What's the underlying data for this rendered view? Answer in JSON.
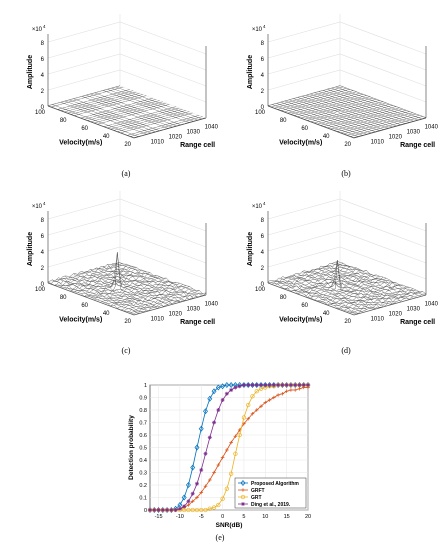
{
  "chart_data": [
    {
      "type": "surface",
      "caption": "(a)",
      "zlabel": "Amplitude",
      "xlabel": "Range cell",
      "ylabel": "Velocity(m/s)",
      "z_exponent": "×10",
      "z_exponent_power": "4",
      "z_ticks": [
        "0",
        "2",
        "4",
        "6",
        "8"
      ],
      "x_ticks": [
        "1010",
        "1020",
        "1030",
        "1040"
      ],
      "y_ticks": [
        "20",
        "40",
        "60",
        "80",
        "100"
      ],
      "zlim": [
        0,
        90000
      ],
      "surface": "flat noise floor with bright stripes",
      "peak": 0
    },
    {
      "type": "surface",
      "caption": "(b)",
      "zlabel": "Amplitude",
      "xlabel": "Range cell",
      "ylabel": "Velocity(m/s)",
      "z_exponent": "×10",
      "z_exponent_power": "4",
      "z_ticks": [
        "0",
        "2",
        "4",
        "6",
        "8"
      ],
      "x_ticks": [
        "1010",
        "1020",
        "1030",
        "1040"
      ],
      "y_ticks": [
        "20",
        "40",
        "60",
        "80",
        "100"
      ],
      "zlim": [
        0,
        90000
      ],
      "surface": "flat noise floor with small central bump",
      "peak": 2000
    },
    {
      "type": "surface",
      "caption": "(c)",
      "zlabel": "Amplitude",
      "xlabel": "Range cell",
      "ylabel": "Velocity(m/s)",
      "z_exponent": "×10",
      "z_exponent_power": "4",
      "z_ticks": [
        "0",
        "2",
        "4",
        "6",
        "8"
      ],
      "x_ticks": [
        "1010",
        "1020",
        "1030",
        "1040"
      ],
      "y_ticks": [
        "20",
        "40",
        "60",
        "80",
        "100"
      ],
      "zlim": [
        0,
        90000
      ],
      "surface": "noise floor with single sharp peak",
      "peak": 72000
    },
    {
      "type": "surface",
      "caption": "(d)",
      "zlabel": "Amplitude",
      "xlabel": "Range cell",
      "ylabel": "Velocity(m/s)",
      "z_exponent": "×10",
      "z_exponent_power": "4",
      "z_ticks": [
        "0",
        "2",
        "4",
        "6",
        "8"
      ],
      "x_ticks": [
        "1010",
        "1020",
        "1030",
        "1040"
      ],
      "y_ticks": [
        "20",
        "40",
        "60",
        "80",
        "100"
      ],
      "zlim": [
        0,
        90000
      ],
      "surface": "noise floor with single sharp peak",
      "peak": 60000
    },
    {
      "type": "line",
      "caption": "(e)",
      "xlabel": "SNR(dB)",
      "ylabel": "Detection probability",
      "xlim": [
        -17,
        20
      ],
      "ylim": [
        0,
        1
      ],
      "x_ticks": [
        "-15",
        "-10",
        "-5",
        "0",
        "5",
        "10",
        "15",
        "20"
      ],
      "y_ticks": [
        "0",
        "0.1",
        "0.2",
        "0.3",
        "0.4",
        "0.5",
        "0.6",
        "0.7",
        "0.8",
        "0.9",
        "1"
      ],
      "legend_position": "bottom-right",
      "x": [
        -17,
        -16,
        -15,
        -14,
        -13,
        -12,
        -11,
        -10,
        -9,
        -8,
        -7,
        -6,
        -5,
        -4,
        -3,
        -2,
        -1,
        0,
        1,
        2,
        3,
        4,
        5,
        6,
        7,
        8,
        9,
        10,
        11,
        12,
        13,
        14,
        15,
        16,
        17,
        18,
        19,
        20
      ],
      "series": [
        {
          "name": "Proposed Algorithm",
          "color": "#0072bd",
          "marker": "diamond",
          "values": [
            0,
            0,
            0,
            0,
            0,
            0,
            0.01,
            0.04,
            0.1,
            0.2,
            0.34,
            0.5,
            0.65,
            0.79,
            0.89,
            0.95,
            0.98,
            0.99,
            1,
            1,
            1,
            1,
            1,
            1,
            1,
            1,
            1,
            1,
            1,
            1,
            1,
            1,
            1,
            1,
            1,
            1,
            1,
            1
          ]
        },
        {
          "name": "GRFT",
          "color": "#d95319",
          "marker": "plus",
          "values": [
            0,
            0,
            0,
            0,
            0,
            0,
            0,
            0.01,
            0.02,
            0.04,
            0.07,
            0.1,
            0.14,
            0.19,
            0.24,
            0.3,
            0.36,
            0.42,
            0.48,
            0.54,
            0.59,
            0.64,
            0.69,
            0.73,
            0.77,
            0.8,
            0.83,
            0.86,
            0.88,
            0.9,
            0.92,
            0.93,
            0.95,
            0.96,
            0.96,
            0.97,
            0.98,
            0.98
          ]
        },
        {
          "name": "GRT",
          "color": "#edb120",
          "marker": "circle",
          "values": [
            0,
            0,
            0,
            0,
            0,
            0,
            0,
            0,
            0,
            0,
            0,
            0,
            0,
            0,
            0.01,
            0.02,
            0.04,
            0.09,
            0.17,
            0.29,
            0.45,
            0.6,
            0.74,
            0.84,
            0.91,
            0.95,
            0.97,
            0.98,
            0.99,
            0.99,
            1,
            1,
            1,
            1,
            1,
            1,
            1,
            1
          ]
        },
        {
          "name": "Ding et al., 2019.",
          "color": "#7e2f8e",
          "marker": "star",
          "values": [
            0,
            0,
            0,
            0,
            0,
            0,
            0,
            0.01,
            0.03,
            0.07,
            0.13,
            0.21,
            0.32,
            0.45,
            0.58,
            0.7,
            0.8,
            0.88,
            0.93,
            0.96,
            0.98,
            0.99,
            1,
            1,
            1,
            1,
            1,
            1,
            1,
            1,
            1,
            1,
            1,
            1,
            1,
            1,
            1,
            1
          ]
        }
      ]
    }
  ]
}
